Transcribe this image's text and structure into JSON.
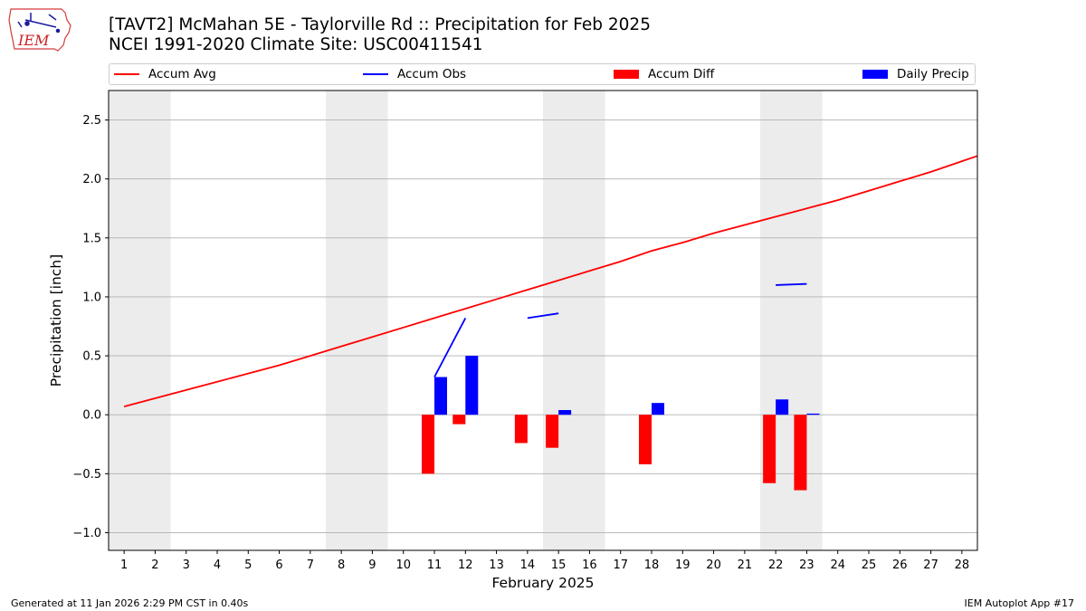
{
  "header": {
    "logo_text": "IEM",
    "title_line1": "[TAVT2] McMahan 5E - Taylorville Rd :: Precipitation for Feb 2025",
    "title_line2": "NCEI 1991-2020 Climate Site: USC00411541"
  },
  "legend": {
    "items": [
      {
        "label": "Accum Avg",
        "color": "#ff0000",
        "kind": "line"
      },
      {
        "label": "Accum Obs",
        "color": "#0000ff",
        "kind": "line"
      },
      {
        "label": "Accum Diff",
        "color": "#ff0000",
        "kind": "box"
      },
      {
        "label": "Daily Precip",
        "color": "#0000ff",
        "kind": "box"
      }
    ]
  },
  "chart_data": {
    "type": "bar",
    "xlabel": "February 2025",
    "ylabel": "Precipitation [inch]",
    "xlim": [
      0.5,
      28.5
    ],
    "ylim": [
      -1.15,
      2.75
    ],
    "yticks": [
      -1.0,
      -0.5,
      0.0,
      0.5,
      1.0,
      1.5,
      2.0,
      2.5
    ],
    "ytick_labels": [
      "−1.0",
      "−0.5",
      "0.0",
      "0.5",
      "1.0",
      "1.5",
      "2.0",
      "2.5"
    ],
    "days": [
      1,
      2,
      3,
      4,
      5,
      6,
      7,
      8,
      9,
      10,
      11,
      12,
      13,
      14,
      15,
      16,
      17,
      18,
      19,
      20,
      21,
      22,
      23,
      24,
      25,
      26,
      27,
      28
    ],
    "weekend_spans": [
      [
        0.5,
        2.5
      ],
      [
        7.5,
        9.5
      ],
      [
        14.5,
        16.5
      ],
      [
        21.5,
        23.5
      ]
    ],
    "accum_avg": [
      0.07,
      0.14,
      0.21,
      0.28,
      0.35,
      0.42,
      0.5,
      0.58,
      0.66,
      0.74,
      0.82,
      0.9,
      0.98,
      1.06,
      1.14,
      1.22,
      1.3,
      1.39,
      1.46,
      1.54,
      1.61,
      1.68,
      1.75,
      1.82,
      1.9,
      1.98,
      2.06,
      2.15
    ],
    "accum_obs_segments": [
      [
        [
          11,
          0.32
        ],
        [
          12,
          0.82
        ]
      ],
      [
        [
          14,
          0.82
        ],
        [
          15,
          0.86
        ]
      ],
      [
        [
          22,
          1.1
        ],
        [
          23,
          1.11
        ]
      ]
    ],
    "accum_diff": [
      {
        "day": 11,
        "value": -0.5
      },
      {
        "day": 12,
        "value": -0.08
      },
      {
        "day": 14,
        "value": -0.24
      },
      {
        "day": 15,
        "value": -0.28
      },
      {
        "day": 18,
        "value": -0.42
      },
      {
        "day": 22,
        "value": -0.58
      },
      {
        "day": 23,
        "value": -0.64
      }
    ],
    "daily_precip": [
      {
        "day": 11,
        "value": 0.32
      },
      {
        "day": 12,
        "value": 0.5
      },
      {
        "day": 15,
        "value": 0.04
      },
      {
        "day": 18,
        "value": 0.1
      },
      {
        "day": 22,
        "value": 0.13
      },
      {
        "day": 23,
        "value": 0.01
      }
    ],
    "colors": {
      "avg": "#ff0000",
      "obs": "#0000ff",
      "diff": "#ff0000",
      "precip": "#0000ff",
      "weekend": "#ececec",
      "grid": "#b0b0b0"
    }
  },
  "footer": {
    "generated": "Generated at 11 Jan 2026 2:29 PM CST in 0.40s",
    "app": "IEM Autoplot App #17"
  }
}
